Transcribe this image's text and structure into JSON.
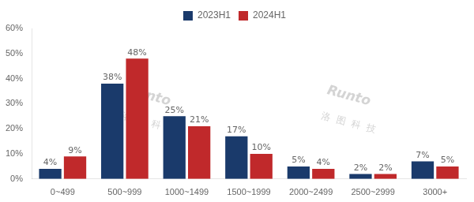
{
  "chart_data": {
    "type": "bar",
    "categories": [
      "0~499",
      "500~999",
      "1000~1499",
      "1500~1999",
      "2000~2499",
      "2500~2999",
      "3000+"
    ],
    "series": [
      {
        "name": "2023H1",
        "color": "#1a3a6b",
        "values": [
          4,
          38,
          25,
          17,
          5,
          2,
          7
        ],
        "value_labels": [
          "4%",
          "38%",
          "25%",
          "17%",
          "5%",
          "2%",
          "7%"
        ]
      },
      {
        "name": "2024H1",
        "color": "#c0292b",
        "values": [
          9,
          48,
          21,
          10,
          4,
          2,
          5
        ],
        "value_labels": [
          "9%",
          "48%",
          "21%",
          "10%",
          "4%",
          "2%",
          "5%"
        ]
      }
    ],
    "ylim": [
      0,
      60
    ],
    "yticks": [
      {
        "value": 0,
        "label": "0%"
      },
      {
        "value": 10,
        "label": "10%"
      },
      {
        "value": 20,
        "label": "20%"
      },
      {
        "value": 30,
        "label": "30%"
      },
      {
        "value": 40,
        "label": "40%"
      },
      {
        "value": 50,
        "label": "50%"
      },
      {
        "value": 60,
        "label": "60%"
      }
    ],
    "grid": false,
    "legend": "top",
    "data_labels": true,
    "annotations": [
      "Runto",
      "洛  图  科  技",
      "Runto",
      "洛  图  科  技"
    ]
  }
}
